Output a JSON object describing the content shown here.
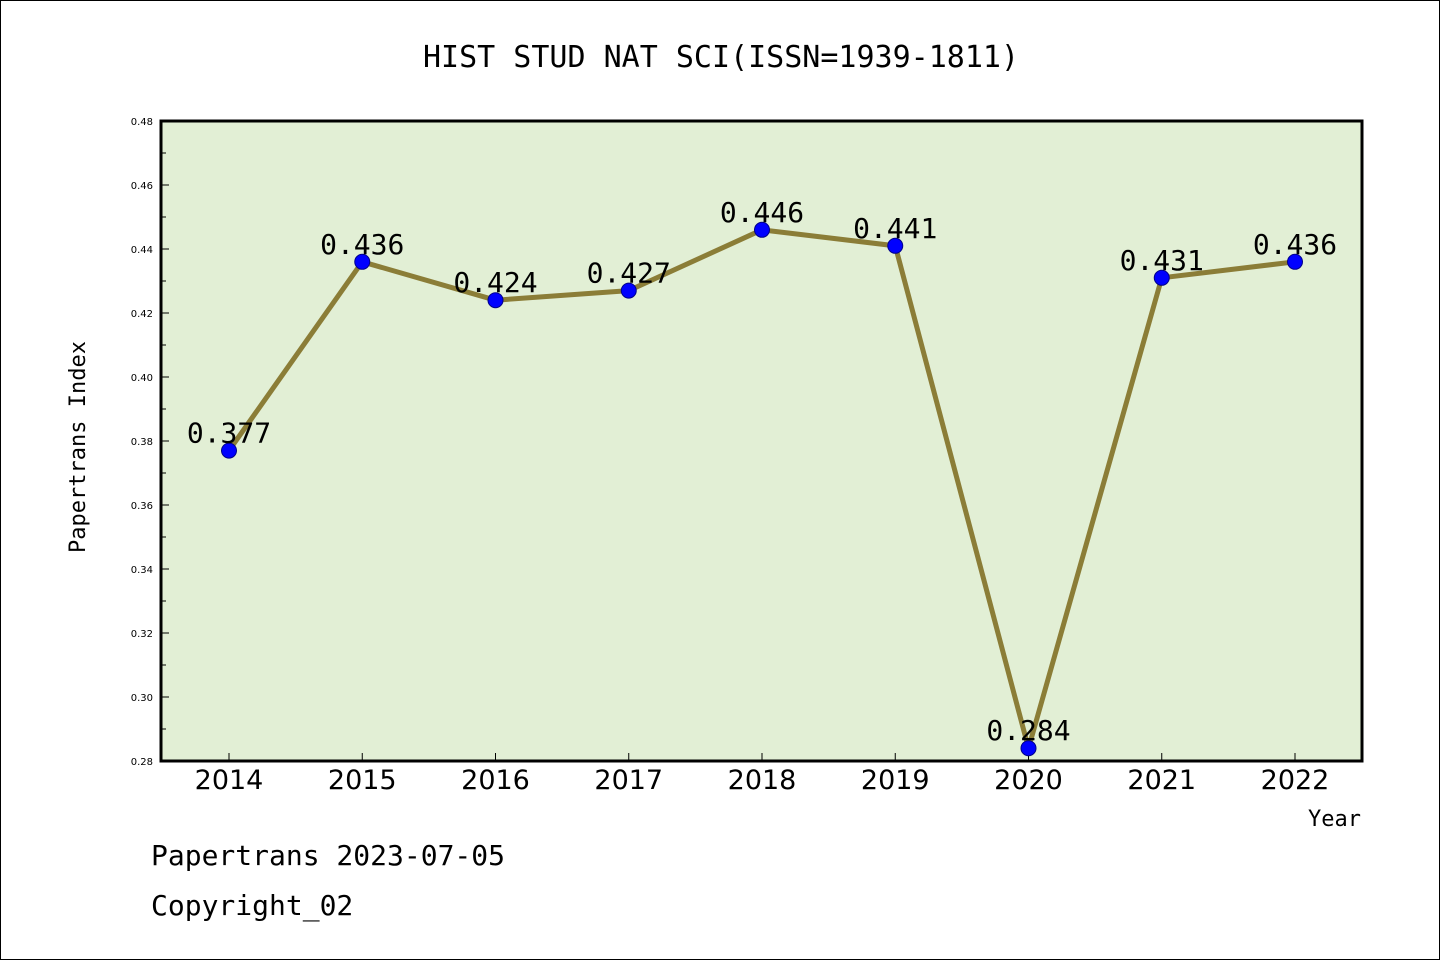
{
  "chart_data": {
    "type": "line",
    "title": "HIST STUD NAT SCI(ISSN=1939-1811)",
    "xlabel": "Year",
    "ylabel": "Papertrans Index",
    "categories": [
      "2014",
      "2015",
      "2016",
      "2017",
      "2018",
      "2019",
      "2020",
      "2021",
      "2022"
    ],
    "values": [
      0.377,
      0.436,
      0.424,
      0.427,
      0.446,
      0.441,
      0.284,
      0.431,
      0.436
    ],
    "data_labels": [
      "0.377",
      "0.436",
      "0.424",
      "0.427",
      "0.446",
      "0.441",
      "0.284",
      "0.431",
      "0.436"
    ],
    "ylim": [
      0.28,
      0.48
    ],
    "yticks": [
      "0.28",
      "0.30",
      "0.32",
      "0.34",
      "0.36",
      "0.38",
      "0.40",
      "0.42",
      "0.44",
      "0.46",
      "0.48"
    ],
    "grid": false,
    "colors": {
      "plot_background": "#e2efd5",
      "line": "#8b7d37",
      "marker": "#0000ff"
    }
  },
  "footer": {
    "date_line": "Papertrans 2023-07-05",
    "copyright": "Copyright_02"
  }
}
